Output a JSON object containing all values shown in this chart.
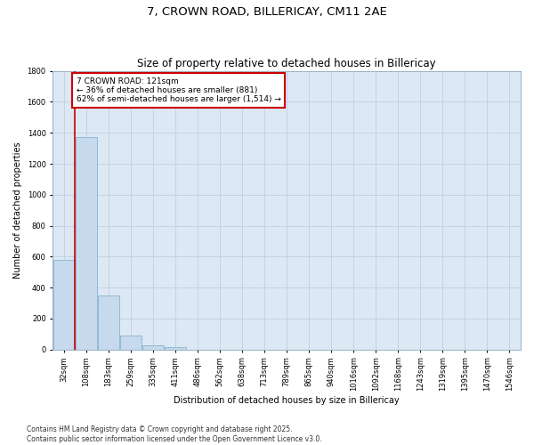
{
  "title": "7, CROWN ROAD, BILLERICAY, CM11 2AE",
  "subtitle": "Size of property relative to detached houses in Billericay",
  "xlabel": "Distribution of detached houses by size in Billericay",
  "ylabel": "Number of detached properties",
  "categories": [
    "32sqm",
    "108sqm",
    "183sqm",
    "259sqm",
    "335sqm",
    "411sqm",
    "486sqm",
    "562sqm",
    "638sqm",
    "713sqm",
    "789sqm",
    "865sqm",
    "940sqm",
    "1016sqm",
    "1092sqm",
    "1168sqm",
    "1243sqm",
    "1319sqm",
    "1395sqm",
    "1470sqm",
    "1546sqm"
  ],
  "values": [
    580,
    1370,
    350,
    90,
    25,
    15,
    0,
    0,
    0,
    0,
    0,
    0,
    0,
    0,
    0,
    0,
    0,
    0,
    0,
    0,
    0
  ],
  "bar_color": "#c6d9ed",
  "bar_edge_color": "#7aaac8",
  "annotation_text": "7 CROWN ROAD: 121sqm\n← 36% of detached houses are smaller (881)\n62% of semi-detached houses are larger (1,514) →",
  "annotation_box_facecolor": "#ffffff",
  "annotation_box_edgecolor": "#cc0000",
  "vline_color": "#cc0000",
  "ylim": [
    0,
    1800
  ],
  "yticks": [
    0,
    200,
    400,
    600,
    800,
    1000,
    1200,
    1400,
    1600,
    1800
  ],
  "grid_color": "#c0d0e0",
  "background_color": "#dce8f4",
  "footer_text": "Contains HM Land Registry data © Crown copyright and database right 2025.\nContains public sector information licensed under the Open Government Licence v3.0.",
  "title_fontsize": 9.5,
  "subtitle_fontsize": 8.5,
  "axis_label_fontsize": 7,
  "tick_fontsize": 6,
  "annotation_fontsize": 6.5,
  "footer_fontsize": 5.5,
  "vline_x_index": 1.0
}
